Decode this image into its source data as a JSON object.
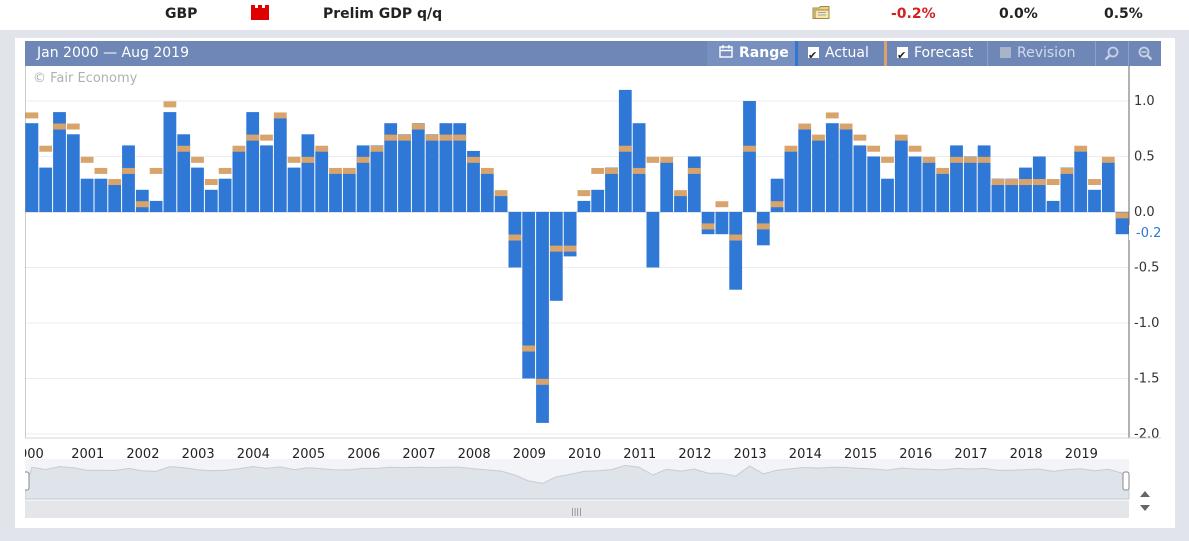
{
  "event_row": {
    "currency": "GBP",
    "event": "Prelim GDP q/q",
    "actual": "-0.2%",
    "forecast": "0.0%",
    "previous": "0.5%",
    "actual_color": "#d42020",
    "flag_icon": "uk-flag-icon",
    "detail_icon": "folder-icon"
  },
  "chart_header": {
    "range_text": "Jan 2000 — Aug 2019",
    "range_label": "Range",
    "actual_label": "Actual",
    "forecast_label": "Forecast",
    "revision_label": "Revision",
    "actual_checked": true,
    "forecast_checked": true,
    "revision_checked": false,
    "zoom_in_icon": "zoom-in-icon",
    "zoom_out_icon": "zoom-out-icon"
  },
  "copyright": "© Fair Economy",
  "current_value_label": "-0.2",
  "chart_data": {
    "type": "bar",
    "y_ticks": [
      "1.0",
      "0.5",
      "0.0",
      "-0.5",
      "-1.0",
      "-1.5",
      "-2.0"
    ],
    "ylim": [
      -2.2,
      1.2
    ],
    "x_labels": [
      "000",
      "2001",
      "2002",
      "2003",
      "2004",
      "2005",
      "2006",
      "2007",
      "2008",
      "2009",
      "2010",
      "2011",
      "2012",
      "2013",
      "2014",
      "2015",
      "2016",
      "2017",
      "2018",
      "2019"
    ],
    "grid": true,
    "colors": {
      "actual": "#2f78d6",
      "forecast": "#d9a46c"
    },
    "series": [
      {
        "name": "Actual",
        "values": [
          0.8,
          0.4,
          0.9,
          0.7,
          0.3,
          0.3,
          0.25,
          0.6,
          0.2,
          0.1,
          0.9,
          0.7,
          0.4,
          0.2,
          0.3,
          0.55,
          0.9,
          0.6,
          0.85,
          0.4,
          0.7,
          0.55,
          0.35,
          0.35,
          0.6,
          0.6,
          0.8,
          0.7,
          0.8,
          0.7,
          0.8,
          0.8,
          0.55,
          0.35,
          0.15,
          -0.5,
          -1.5,
          -1.9,
          -0.8,
          -0.4,
          0.1,
          0.2,
          0.4,
          1.1,
          0.8,
          -0.5,
          0.45,
          0.15,
          0.5,
          -0.2,
          -0.2,
          -0.7,
          1.0,
          -0.3,
          0.3,
          0.55,
          0.75,
          0.65,
          0.8,
          0.75,
          0.6,
          0.5,
          0.3,
          0.65,
          0.5,
          0.45,
          0.35,
          0.6,
          0.5,
          0.6,
          0.3,
          0.3,
          0.4,
          0.5,
          0.1,
          0.4,
          0.55,
          0.2,
          0.45,
          -0.2
        ]
      },
      {
        "name": "Forecast",
        "values": [
          0.87,
          0.57,
          0.77,
          0.77,
          0.47,
          0.37,
          0.27,
          0.37,
          0.07,
          0.37,
          0.97,
          0.57,
          0.47,
          0.27,
          0.37,
          0.57,
          0.67,
          0.67,
          0.87,
          0.47,
          0.47,
          0.57,
          0.37,
          0.37,
          0.47,
          0.57,
          0.67,
          0.67,
          0.77,
          0.67,
          0.67,
          0.67,
          0.47,
          0.37,
          0.17,
          -0.23,
          -1.23,
          -1.53,
          -0.33,
          -0.33,
          0.17,
          0.37,
          0.37,
          0.57,
          0.37,
          0.47,
          0.47,
          0.17,
          0.37,
          -0.13,
          0.07,
          -0.23,
          0.57,
          -0.13,
          0.07,
          0.57,
          0.77,
          0.67,
          0.87,
          0.77,
          0.67,
          0.57,
          0.47,
          0.67,
          0.57,
          0.47,
          0.37,
          0.47,
          0.47,
          0.47,
          0.27,
          0.27,
          0.27,
          0.27,
          0.27,
          0.37,
          0.57,
          0.27,
          0.47,
          -0.03
        ]
      }
    ]
  }
}
